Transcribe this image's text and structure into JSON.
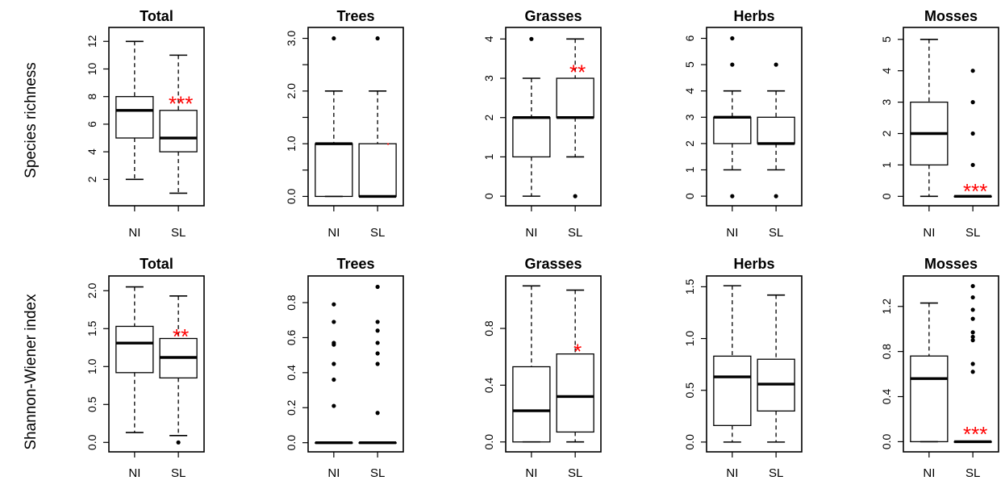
{
  "row_labels": [
    "Species richness",
    "Shannon-Wiener index"
  ],
  "colors": {
    "box": "#000000",
    "significance": "#ff0000",
    "background": "#ffffff"
  },
  "chart_data": [
    {
      "type": "boxplot",
      "row": 0,
      "title": "Total",
      "ylabel": "Species richness",
      "categories": [
        "NI",
        "SL"
      ],
      "ylim": [
        0.5,
        12.6
      ],
      "yticks": [
        2,
        4,
        6,
        8,
        10,
        12
      ],
      "ytick_labels": [
        "2",
        "4",
        "6",
        "8",
        "10",
        "12"
      ],
      "series": [
        {
          "category": "NI",
          "whisker_low": 2,
          "q1": 5,
          "median": 7,
          "q3": 8,
          "whisker_high": 12,
          "outliers": []
        },
        {
          "category": "SL",
          "whisker_low": 1,
          "q1": 4,
          "median": 5,
          "q3": 7,
          "whisker_high": 11,
          "outliers": [],
          "significance": "***",
          "significance_y": 7.6
        }
      ]
    },
    {
      "type": "boxplot",
      "row": 0,
      "title": "Trees",
      "ylabel": "Species richness",
      "categories": [
        "NI",
        "SL"
      ],
      "ylim": [
        -0.07,
        3.1
      ],
      "yticks": [
        0,
        0.5,
        1,
        1.5,
        2,
        2.5,
        3
      ],
      "ytick_labels": [
        "0.0",
        "",
        "1.0",
        "",
        "2.0",
        "",
        "3.0"
      ],
      "series": [
        {
          "category": "NI",
          "whisker_low": 0,
          "q1": 0,
          "median": 1,
          "q3": 1,
          "whisker_high": 2,
          "outliers": [
            3
          ]
        },
        {
          "category": "SL",
          "whisker_low": 0,
          "q1": 0,
          "median": 0,
          "q3": 1,
          "whisker_high": 2,
          "outliers": [
            3
          ],
          "significance": ".",
          "significance_y": 1.15
        }
      ]
    },
    {
      "type": "boxplot",
      "row": 0,
      "title": "Grasses",
      "ylabel": "Species richness",
      "categories": [
        "NI",
        "SL"
      ],
      "ylim": [
        -0.1,
        4.15
      ],
      "yticks": [
        0,
        1,
        2,
        3,
        4
      ],
      "ytick_labels": [
        "0",
        "1",
        "2",
        "3",
        "4"
      ],
      "series": [
        {
          "category": "NI",
          "whisker_low": 0,
          "q1": 1,
          "median": 2,
          "q3": 2,
          "whisker_high": 3,
          "outliers": [
            4
          ]
        },
        {
          "category": "SL",
          "whisker_low": 1,
          "q1": 2,
          "median": 2,
          "q3": 3,
          "whisker_high": 4,
          "outliers": [
            0
          ],
          "significance": "**",
          "significance_y": 3.2
        }
      ]
    },
    {
      "type": "boxplot",
      "row": 0,
      "title": "Herbs",
      "ylabel": "Species richness",
      "categories": [
        "NI",
        "SL"
      ],
      "ylim": [
        -0.15,
        6.2
      ],
      "yticks": [
        0,
        1,
        2,
        3,
        4,
        5,
        6
      ],
      "ytick_labels": [
        "0",
        "1",
        "2",
        "3",
        "4",
        "5",
        "6"
      ],
      "series": [
        {
          "category": "NI",
          "whisker_low": 1,
          "q1": 2,
          "median": 3,
          "q3": 3,
          "whisker_high": 4,
          "outliers": [
            0,
            5,
            6
          ]
        },
        {
          "category": "SL",
          "whisker_low": 1,
          "q1": 2,
          "median": 2,
          "q3": 3,
          "whisker_high": 4,
          "outliers": [
            0,
            5
          ]
        }
      ]
    },
    {
      "type": "boxplot",
      "row": 0,
      "title": "Mosses",
      "ylabel": "Species richness",
      "categories": [
        "NI",
        "SL"
      ],
      "ylim": [
        -0.12,
        5.2
      ],
      "yticks": [
        0,
        1,
        2,
        3,
        4,
        5
      ],
      "ytick_labels": [
        "0",
        "1",
        "2",
        "3",
        "4",
        "5"
      ],
      "series": [
        {
          "category": "NI",
          "whisker_low": 0,
          "q1": 1,
          "median": 2,
          "q3": 3,
          "whisker_high": 5,
          "outliers": []
        },
        {
          "category": "SL",
          "whisker_low": 0,
          "q1": 0,
          "median": 0,
          "q3": 0,
          "whisker_high": 0,
          "outliers": [
            1,
            2,
            3,
            4
          ],
          "significance": "***",
          "significance_y": 0.22
        }
      ]
    },
    {
      "type": "boxplot",
      "row": 1,
      "title": "Total",
      "ylabel": "Shannon-Wiener index",
      "categories": [
        "NI",
        "SL"
      ],
      "ylim": [
        -0.05,
        2.12
      ],
      "yticks": [
        0,
        0.5,
        1,
        1.5,
        2
      ],
      "ytick_labels": [
        "0.0",
        "0.5",
        "1.0",
        "1.5",
        "2.0"
      ],
      "series": [
        {
          "category": "NI",
          "whisker_low": 0.13,
          "q1": 0.92,
          "median": 1.31,
          "q3": 1.53,
          "whisker_high": 2.05,
          "outliers": []
        },
        {
          "category": "SL",
          "whisker_low": 0.09,
          "q1": 0.85,
          "median": 1.12,
          "q3": 1.37,
          "whisker_high": 1.93,
          "outliers": [
            0
          ],
          "significance": "**",
          "significance_y": 1.42
        }
      ]
    },
    {
      "type": "boxplot",
      "row": 1,
      "title": "Trees",
      "ylabel": "Shannon-Wiener index",
      "categories": [
        "NI",
        "SL"
      ],
      "ylim": [
        -0.02,
        0.92
      ],
      "yticks": [
        0,
        0.2,
        0.4,
        0.6,
        0.8
      ],
      "ytick_labels": [
        "0.0",
        "0.2",
        "0.4",
        "0.6",
        "0.8"
      ],
      "series": [
        {
          "category": "NI",
          "whisker_low": 0,
          "q1": 0,
          "median": 0,
          "q3": 0,
          "whisker_high": 0,
          "outliers": [
            0.21,
            0.36,
            0.45,
            0.56,
            0.57,
            0.69,
            0.79
          ]
        },
        {
          "category": "SL",
          "whisker_low": 0,
          "q1": 0,
          "median": 0,
          "q3": 0,
          "whisker_high": 0,
          "outliers": [
            0.17,
            0.45,
            0.51,
            0.57,
            0.64,
            0.69,
            0.89
          ]
        }
      ]
    },
    {
      "type": "boxplot",
      "row": 1,
      "title": "Grasses",
      "ylabel": "Shannon-Wiener index",
      "categories": [
        "NI",
        "SL"
      ],
      "ylim": [
        -0.03,
        1.13
      ],
      "yticks": [
        0,
        0.4,
        0.8
      ],
      "ytick_labels": [
        "0.0",
        "0.4",
        "0.8"
      ],
      "series": [
        {
          "category": "NI",
          "whisker_low": 0,
          "q1": 0,
          "median": 0.22,
          "q3": 0.53,
          "whisker_high": 1.1,
          "outliers": []
        },
        {
          "category": "SL",
          "whisker_low": 0,
          "q1": 0.07,
          "median": 0.32,
          "q3": 0.62,
          "whisker_high": 1.07,
          "outliers": [],
          "significance": "*",
          "significance_y": 0.65
        }
      ]
    },
    {
      "type": "boxplot",
      "row": 1,
      "title": "Herbs",
      "ylabel": "Shannon-Wiener index",
      "categories": [
        "NI",
        "SL"
      ],
      "ylim": [
        -0.04,
        1.55
      ],
      "yticks": [
        0,
        0.5,
        1,
        1.5
      ],
      "ytick_labels": [
        "0.0",
        "0.5",
        "1.0",
        "1.5"
      ],
      "series": [
        {
          "category": "NI",
          "whisker_low": 0,
          "q1": 0.16,
          "median": 0.63,
          "q3": 0.83,
          "whisker_high": 1.51,
          "outliers": []
        },
        {
          "category": "SL",
          "whisker_low": 0,
          "q1": 0.3,
          "median": 0.56,
          "q3": 0.8,
          "whisker_high": 1.42,
          "outliers": []
        }
      ]
    },
    {
      "type": "boxplot",
      "row": 1,
      "title": "Mosses",
      "ylabel": "Shannon-Wiener index",
      "categories": [
        "NI",
        "SL"
      ],
      "ylim": [
        -0.04,
        1.42
      ],
      "yticks": [
        0,
        0.4,
        0.8,
        1.2
      ],
      "ytick_labels": [
        "0.0",
        "0.4",
        "0.8",
        "1.2"
      ],
      "series": [
        {
          "category": "NI",
          "whisker_low": 0,
          "q1": 0,
          "median": 0.56,
          "q3": 0.76,
          "whisker_high": 1.23,
          "outliers": []
        },
        {
          "category": "SL",
          "whisker_low": 0,
          "q1": 0,
          "median": 0,
          "q3": 0,
          "whisker_high": 0,
          "outliers": [
            0.62,
            0.69,
            0.9,
            0.93,
            0.97,
            1.09,
            1.17,
            1.28,
            1.38
          ],
          "significance": "***",
          "significance_y": 0.08
        }
      ]
    }
  ]
}
